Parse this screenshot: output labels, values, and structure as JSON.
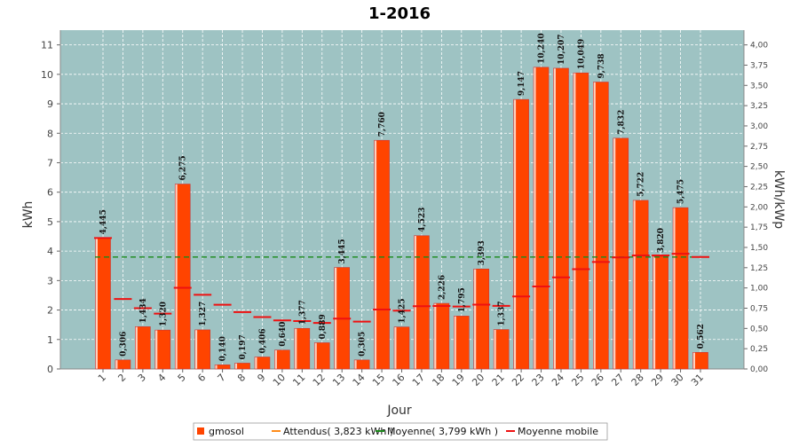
{
  "chart_data": {
    "type": "bar",
    "title": "1-2016",
    "xlabel": "Jour",
    "ylabel": "kWh",
    "y2label": "kWh/kWp",
    "ylim": [
      0,
      11.5
    ],
    "y2lim": [
      0,
      4.1818
    ],
    "yticks": [
      0,
      1,
      2,
      3,
      4,
      5,
      6,
      7,
      8,
      9,
      10,
      11
    ],
    "y2ticks": [
      "0,00",
      "0,25",
      "0,50",
      "0,75",
      "1,00",
      "1,25",
      "1,50",
      "1,75",
      "2,00",
      "2,25",
      "2,50",
      "2,75",
      "3,00",
      "3,25",
      "3,50",
      "3,75",
      "4,00"
    ],
    "categories": [
      "1",
      "2",
      "3",
      "4",
      "5",
      "6",
      "7",
      "8",
      "9",
      "10",
      "11",
      "12",
      "13",
      "14",
      "15",
      "16",
      "17",
      "18",
      "19",
      "20",
      "21",
      "22",
      "23",
      "24",
      "25",
      "26",
      "27",
      "28",
      "29",
      "30",
      "31"
    ],
    "series": [
      {
        "name": "gmosol",
        "color": "#ff4400",
        "values": [
          4.445,
          0.306,
          1.434,
          1.32,
          6.275,
          1.327,
          0.14,
          0.197,
          0.406,
          0.64,
          1.377,
          0.889,
          3.445,
          0.305,
          7.76,
          1.425,
          4.523,
          2.226,
          1.795,
          3.393,
          1.337,
          9.147,
          10.24,
          10.207,
          10.049,
          9.738,
          7.832,
          5.722,
          3.82,
          5.475,
          0.562
        ],
        "labels": [
          "4,445",
          "0,306",
          "1,434",
          "1,320",
          "6,275",
          "1,327",
          "0,140",
          "0,197",
          "0,406",
          "0,640",
          "1,377",
          "0,889",
          "3,445",
          "0,305",
          "7,760",
          "1,425",
          "4,523",
          "2,226",
          "1,795",
          "3,393",
          "1,337",
          "9,147",
          "10,240",
          "10,207",
          "10,049",
          "9,738",
          "7,832",
          "5,722",
          "3,820",
          "5,475",
          "0,562"
        ]
      },
      {
        "name": "Attendus( 3,823 kWh )",
        "color": "#ff8c1a",
        "value": 3.823
      },
      {
        "name": "Moyenne( 3,799 kWh )",
        "color": "#1a8a1a",
        "value": 3.799
      },
      {
        "name": "Moyenne mobile",
        "color": "#ee1111",
        "values": [
          4.445,
          2.376,
          2.062,
          1.876,
          2.756,
          2.518,
          2.178,
          1.93,
          1.761,
          1.649,
          1.624,
          1.563,
          1.708,
          1.608,
          2.018,
          1.981,
          2.131,
          2.136,
          2.118,
          2.182,
          2.141,
          2.46,
          2.798,
          3.107,
          3.385,
          3.63,
          3.786,
          3.855,
          3.854,
          3.908,
          3.799
        ]
      }
    ],
    "legend": {
      "position": "bottom",
      "items": [
        "gmosol",
        "Attendus( 3,823 kWh )",
        "Moyenne( 3,799 kWh )",
        "Moyenne mobile"
      ]
    },
    "colors": {
      "plot_background": "#9ec3c3",
      "grid": "#ffffff",
      "bar": "#ff4400"
    },
    "grid": true
  }
}
